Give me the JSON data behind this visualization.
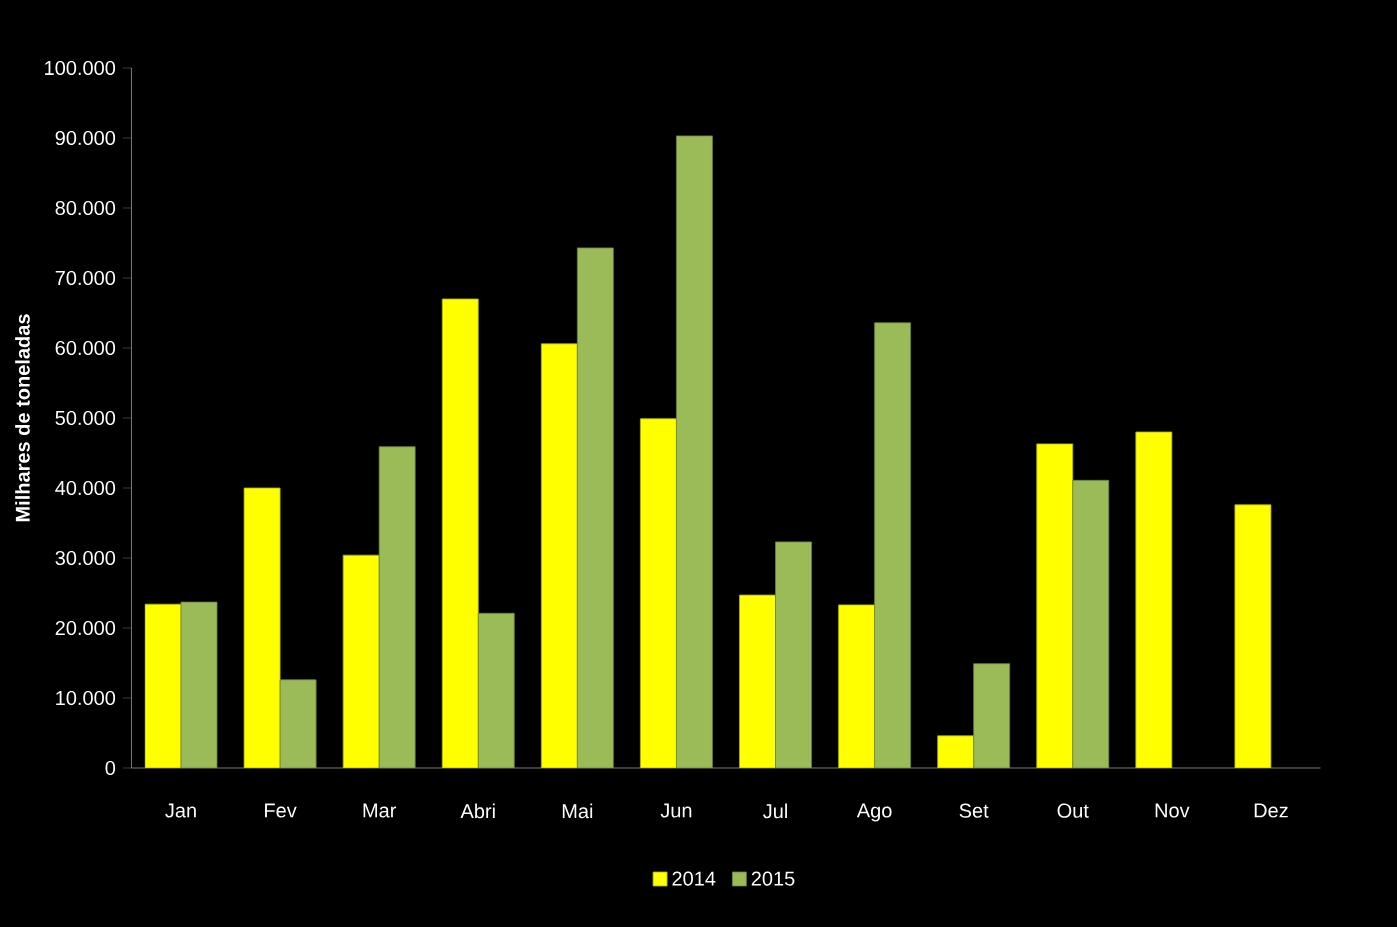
{
  "chart_data": {
    "type": "bar",
    "ylabel": "Milhares de toneladas",
    "categories": [
      "Jan",
      "Fev",
      "Mar",
      "Abri",
      "Mai",
      "Jun",
      "Jul",
      "Ago",
      "Set",
      "Out",
      "Nov",
      "Dez"
    ],
    "series": [
      {
        "name": "2014",
        "color": "#ffff00",
        "values": [
          23400,
          40000,
          30400,
          67000,
          60600,
          49900,
          24700,
          23300,
          4600,
          46300,
          48000,
          37600
        ]
      },
      {
        "name": "2015",
        "color": "#9bbb59",
        "values": [
          23700,
          12600,
          45900,
          22100,
          74300,
          90300,
          32300,
          63600,
          14900,
          41100,
          null,
          null
        ]
      }
    ],
    "ylim": [
      0,
      100000
    ],
    "yticks": [
      {
        "value": 0,
        "label": "0"
      },
      {
        "value": 10000,
        "label": "10.000"
      },
      {
        "value": 20000,
        "label": "20.000"
      },
      {
        "value": 30000,
        "label": "30.000"
      },
      {
        "value": 40000,
        "label": "40.000"
      },
      {
        "value": 50000,
        "label": "50.000"
      },
      {
        "value": 60000,
        "label": "60.000"
      },
      {
        "value": 70000,
        "label": "70.000"
      },
      {
        "value": 80000,
        "label": "80.000"
      },
      {
        "value": 90000,
        "label": "90.000"
      },
      {
        "value": 100000,
        "label": "100.000"
      }
    ],
    "legend": "bottom",
    "grid": false
  }
}
